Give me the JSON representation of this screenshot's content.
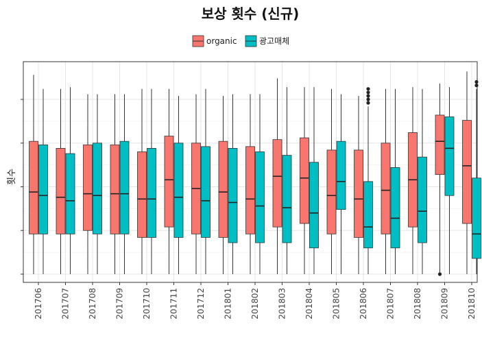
{
  "chart_data": {
    "type": "boxplot",
    "title": "보상 횟수 (신규)",
    "xlabel": "",
    "ylabel": "횟수",
    "ylim": [
      0,
      1.18
    ],
    "grid": true,
    "legend": {
      "position": "top"
    },
    "colors": {
      "organic": "#F8766D",
      "광고매체": "#00BFC4"
    },
    "categories": [
      "201706",
      "201707",
      "201708",
      "201709",
      "201710",
      "201711",
      "201712",
      "201801",
      "201802",
      "201803",
      "201804",
      "201805",
      "201806",
      "201807",
      "201808",
      "201809",
      "201810"
    ],
    "series": [
      {
        "name": "organic",
        "boxes": [
          {
            "min": 0.0,
            "q1": 0.23,
            "median": 0.47,
            "q3": 0.76,
            "max": 1.14
          },
          {
            "min": 0.0,
            "q1": 0.23,
            "median": 0.44,
            "q3": 0.72,
            "max": 1.06
          },
          {
            "min": 0.0,
            "q1": 0.25,
            "median": 0.46,
            "q3": 0.74,
            "max": 1.03
          },
          {
            "min": 0.0,
            "q1": 0.23,
            "median": 0.46,
            "q3": 0.74,
            "max": 1.03
          },
          {
            "min": 0.0,
            "q1": 0.21,
            "median": 0.43,
            "q3": 0.7,
            "max": 1.06
          },
          {
            "min": 0.0,
            "q1": 0.27,
            "median": 0.54,
            "q3": 0.79,
            "max": 1.06
          },
          {
            "min": 0.0,
            "q1": 0.23,
            "median": 0.49,
            "q3": 0.75,
            "max": 1.03
          },
          {
            "min": 0.0,
            "q1": 0.21,
            "median": 0.47,
            "q3": 0.76,
            "max": 1.02
          },
          {
            "min": 0.0,
            "q1": 0.23,
            "median": 0.43,
            "q3": 0.73,
            "max": 1.03
          },
          {
            "min": 0.0,
            "q1": 0.27,
            "median": 0.56,
            "q3": 0.77,
            "max": 1.12
          },
          {
            "min": 0.0,
            "q1": 0.29,
            "median": 0.55,
            "q3": 0.78,
            "max": 1.07
          },
          {
            "min": 0.0,
            "q1": 0.23,
            "median": 0.45,
            "q3": 0.71,
            "max": 1.06
          },
          {
            "min": 0.0,
            "q1": 0.21,
            "median": 0.43,
            "q3": 0.71,
            "max": 1.02
          },
          {
            "min": 0.0,
            "q1": 0.23,
            "median": 0.48,
            "q3": 0.75,
            "max": 1.06
          },
          {
            "min": 0.0,
            "q1": 0.27,
            "median": 0.54,
            "q3": 0.81,
            "max": 1.07
          },
          {
            "min": 0.0,
            "q1": 0.57,
            "median": 0.76,
            "q3": 0.91,
            "max": 1.09,
            "outliers": [
              0.0
            ]
          },
          {
            "min": 0.0,
            "q1": 0.29,
            "median": 0.62,
            "q3": 0.88,
            "max": 1.16
          }
        ]
      },
      {
        "name": "광고매체",
        "boxes": [
          {
            "min": 0.0,
            "q1": 0.23,
            "median": 0.45,
            "q3": 0.74,
            "max": 1.06
          },
          {
            "min": 0.0,
            "q1": 0.23,
            "median": 0.42,
            "q3": 0.69,
            "max": 1.07
          },
          {
            "min": 0.0,
            "q1": 0.23,
            "median": 0.45,
            "q3": 0.75,
            "max": 1.03
          },
          {
            "min": 0.0,
            "q1": 0.23,
            "median": 0.46,
            "q3": 0.76,
            "max": 1.03
          },
          {
            "min": 0.0,
            "q1": 0.21,
            "median": 0.43,
            "q3": 0.72,
            "max": 1.06
          },
          {
            "min": 0.0,
            "q1": 0.21,
            "median": 0.44,
            "q3": 0.75,
            "max": 1.02
          },
          {
            "min": 0.0,
            "q1": 0.21,
            "median": 0.42,
            "q3": 0.73,
            "max": 1.06
          },
          {
            "min": 0.0,
            "q1": 0.18,
            "median": 0.41,
            "q3": 0.72,
            "max": 1.03
          },
          {
            "min": 0.0,
            "q1": 0.18,
            "median": 0.39,
            "q3": 0.7,
            "max": 1.03
          },
          {
            "min": 0.0,
            "q1": 0.18,
            "median": 0.38,
            "q3": 0.68,
            "max": 1.07
          },
          {
            "min": 0.0,
            "q1": 0.15,
            "median": 0.35,
            "q3": 0.64,
            "max": 1.07
          },
          {
            "min": 0.0,
            "q1": 0.37,
            "median": 0.53,
            "q3": 0.76,
            "max": 1.03
          },
          {
            "min": 0.0,
            "q1": 0.15,
            "median": 0.27,
            "q3": 0.53,
            "max": 0.96,
            "outliers": [
              0.98,
              1.0,
              1.02,
              1.04,
              1.06
            ]
          },
          {
            "min": 0.0,
            "q1": 0.15,
            "median": 0.32,
            "q3": 0.61,
            "max": 1.06
          },
          {
            "min": 0.0,
            "q1": 0.18,
            "median": 0.36,
            "q3": 0.67,
            "max": 1.06
          },
          {
            "min": 0.0,
            "q1": 0.45,
            "median": 0.72,
            "q3": 0.9,
            "max": 1.07
          },
          {
            "min": 0.0,
            "q1": 0.09,
            "median": 0.23,
            "q3": 0.55,
            "max": 1.06,
            "outliers": [
              1.08,
              1.1
            ]
          }
        ]
      }
    ]
  }
}
